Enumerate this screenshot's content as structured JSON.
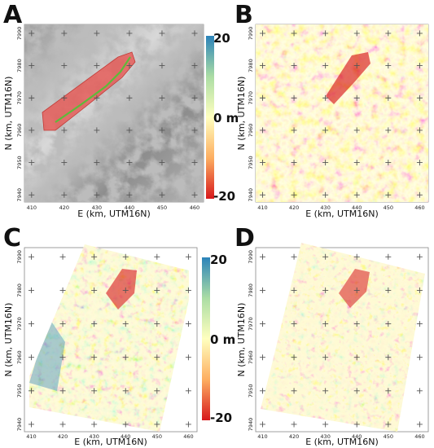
{
  "panels": [
    {
      "id": "A",
      "label": "A",
      "xlabel": "E (km, UTM16N)",
      "ylabel": "N (km, UTM16N)",
      "xticks": [
        "410",
        "420",
        "430",
        "440",
        "450",
        "460"
      ],
      "yticks": [
        "7990",
        "7980",
        "7970",
        "7960",
        "7950",
        "7940"
      ],
      "background": "hillshade"
    },
    {
      "id": "B",
      "label": "B",
      "xlabel": "E (km, UTM16N)",
      "ylabel": "N (km, UTM16N)",
      "xticks": [
        "410",
        "420",
        "430",
        "440",
        "450",
        "460"
      ],
      "yticks": [
        "7990",
        "7980",
        "7970",
        "7960",
        "7950",
        "7940"
      ],
      "background": "difference-map"
    },
    {
      "id": "C",
      "label": "C",
      "xlabel": "E (km, UTM16N)",
      "ylabel": "N (km, UTM16N)",
      "xticks": [
        "410",
        "420",
        "430",
        "440",
        "450",
        "460"
      ],
      "yticks": [
        "7990",
        "7980",
        "7970",
        "7960",
        "7950",
        "7940"
      ],
      "background": "rotated-difference-map"
    },
    {
      "id": "D",
      "label": "D",
      "xlabel": "E (km, UTM16N)",
      "ylabel": "N (km, UTM16N)",
      "xticks": [
        "410",
        "420",
        "430",
        "440",
        "450",
        "460"
      ],
      "yticks": [
        "7990",
        "7980",
        "7970",
        "7960",
        "7950",
        "7940"
      ],
      "background": "rotated-difference-map"
    }
  ],
  "colorbars": [
    {
      "top": "20",
      "mid": "0 m",
      "bottom": "-20"
    },
    {
      "top": "20",
      "mid": "0 m",
      "bottom": "-20"
    }
  ],
  "colors": {
    "neg": "#d7191c",
    "mid_low": "#fdae61",
    "zero": "#ffffbf",
    "mid_high": "#abdda4",
    "pos": "#2b83ba",
    "glacier_fill": "#e8534f",
    "glacier_line": "#5dbb3a"
  }
}
